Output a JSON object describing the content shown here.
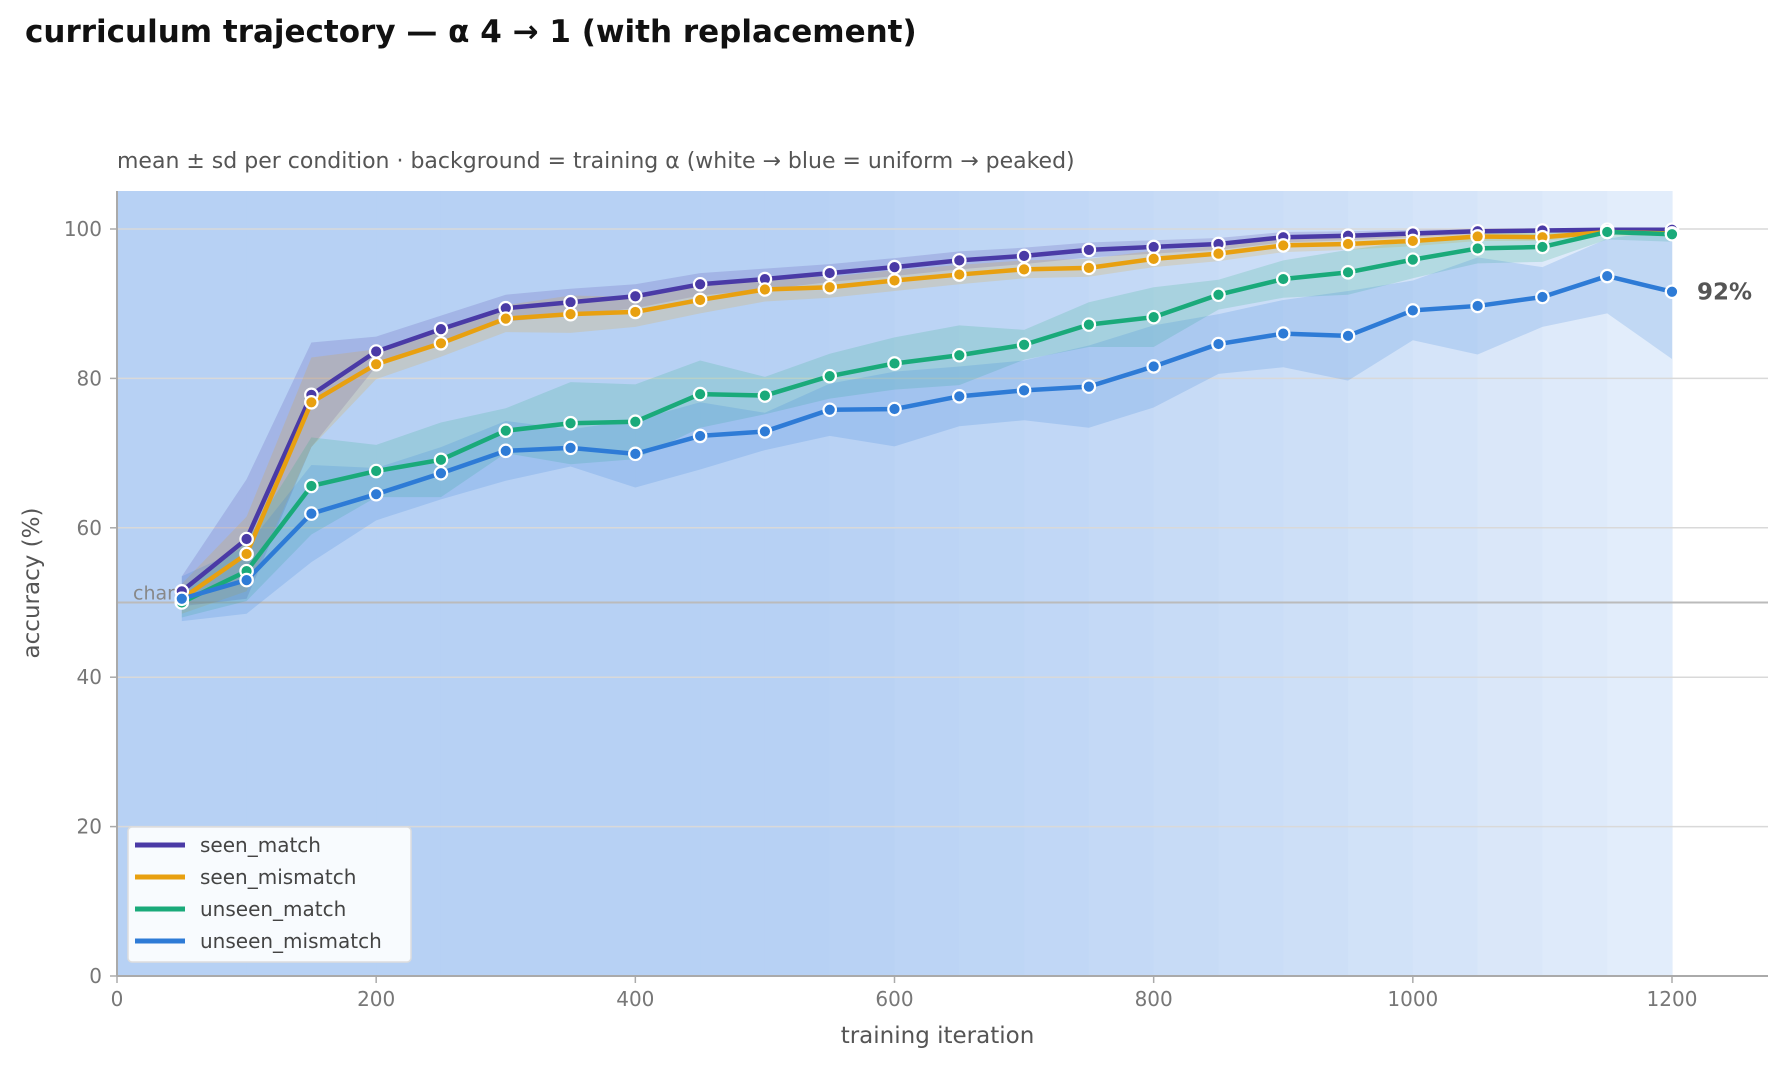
{
  "chart_data": {
    "type": "line",
    "title": "curriculum trajectory — α 4 → 1 (with replacement)",
    "subtitle": "mean ± sd per condition · background = training α (white → blue = uniform → peaked)",
    "xlabel": "training iteration",
    "ylabel": "accuracy (%)",
    "xlim": [
      0,
      1275
    ],
    "ylim": [
      0,
      105
    ],
    "x_ticks": [
      0,
      200,
      400,
      600,
      800,
      1000,
      1200
    ],
    "y_ticks": [
      0,
      20,
      40,
      60,
      80,
      100
    ],
    "grid": "horizontal",
    "legend_position": "lower-left",
    "reference_line": {
      "y": 50,
      "label": "chance"
    },
    "end_annotation": "92%",
    "background_alpha": {
      "x_start": 0,
      "x_end": 1200,
      "step": 50,
      "intensity": [
        1,
        1,
        1,
        1,
        1,
        1,
        1,
        1,
        1,
        1,
        1,
        0.97,
        0.93,
        0.9,
        0.86,
        0.82,
        0.78,
        0.74,
        0.69,
        0.64,
        0.59,
        0.52,
        0.46,
        0.4
      ],
      "color_peaked": "#b7d1f4",
      "color_uniform": "#ffffff"
    },
    "x": [
      50,
      100,
      150,
      200,
      250,
      300,
      350,
      400,
      450,
      500,
      550,
      600,
      650,
      700,
      750,
      800,
      850,
      900,
      950,
      1000,
      1050,
      1100,
      1150,
      1200
    ],
    "series": [
      {
        "name": "seen_match",
        "color": "#4a3aa6",
        "values": [
          51.5,
          58.5,
          77.8,
          83.6,
          86.6,
          89.4,
          90.2,
          91.0,
          92.6,
          93.3,
          94.1,
          94.9,
          95.8,
          96.4,
          97.2,
          97.6,
          98.0,
          98.9,
          99.1,
          99.4,
          99.7,
          99.8,
          99.9,
          99.9
        ],
        "sd": [
          2.0,
          8.0,
          7.0,
          2.0,
          1.8,
          1.8,
          1.8,
          1.6,
          1.5,
          1.4,
          1.2,
          1.2,
          1.2,
          1.1,
          1.0,
          0.9,
          0.8,
          0.7,
          0.6,
          0.5,
          0.4,
          0.3,
          0.2,
          0.2
        ]
      },
      {
        "name": "seen_mismatch",
        "color": "#e8a010",
        "values": [
          50.5,
          56.5,
          76.8,
          81.9,
          84.7,
          88.0,
          88.6,
          88.9,
          90.5,
          91.9,
          92.2,
          93.1,
          93.9,
          94.6,
          94.8,
          96.0,
          96.7,
          97.8,
          98.0,
          98.4,
          99.0,
          98.9,
          99.6,
          99.4
        ],
        "sd": [
          2.0,
          5.0,
          6.0,
          2.0,
          1.8,
          1.8,
          2.5,
          2.0,
          1.8,
          1.6,
          1.4,
          1.4,
          1.3,
          1.2,
          1.2,
          1.1,
          1.0,
          0.9,
          0.8,
          0.7,
          0.6,
          0.5,
          0.4,
          0.4
        ]
      },
      {
        "name": "unseen_match",
        "color": "#1aaa7a",
        "values": [
          50.0,
          54.2,
          65.6,
          67.6,
          69.1,
          73.0,
          74.0,
          74.2,
          77.9,
          77.7,
          80.3,
          82.0,
          83.1,
          84.5,
          87.2,
          88.2,
          91.2,
          93.3,
          94.2,
          95.9,
          97.4,
          97.6,
          99.6,
          99.3
        ],
        "sd": [
          2.0,
          4.0,
          6.5,
          3.5,
          5.0,
          3.0,
          5.5,
          5.0,
          4.5,
          2.5,
          3.0,
          3.5,
          4.0,
          2.0,
          3.0,
          4.0,
          2.0,
          2.5,
          3.0,
          2.5,
          2.0,
          2.0,
          1.0,
          1.0
        ]
      },
      {
        "name": "unseen_mismatch",
        "color": "#2e7bd6",
        "values": [
          50.5,
          53.0,
          61.9,
          64.5,
          67.3,
          70.3,
          70.7,
          69.9,
          72.3,
          72.9,
          75.8,
          75.9,
          77.6,
          78.4,
          78.9,
          81.6,
          84.6,
          86.0,
          85.7,
          89.1,
          89.7,
          90.9,
          93.7,
          91.6
        ],
        "sd": [
          3.0,
          4.5,
          6.5,
          3.5,
          3.5,
          4.0,
          2.5,
          4.5,
          4.5,
          2.5,
          3.5,
          5.0,
          4.0,
          4.0,
          5.5,
          5.5,
          4.0,
          4.5,
          6.0,
          4.0,
          6.5,
          4.0,
          5.0,
          9.0
        ]
      }
    ]
  }
}
